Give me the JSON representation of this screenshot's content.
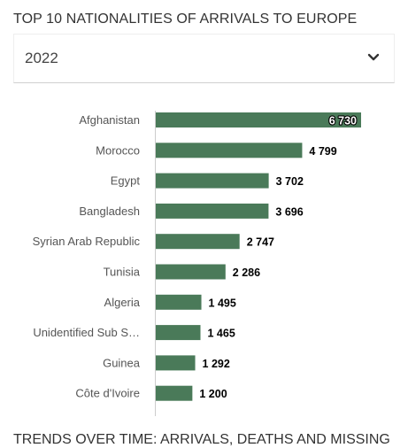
{
  "header": {
    "title": "TOP 10 NATIONALITIES OF ARRIVALS TO EUROPE",
    "year_selected": "2022",
    "chevron_icon": "chevron-down-icon"
  },
  "next_section_title": "TRENDS OVER TIME: ARRIVALS, DEATHS AND MISSING",
  "colors": {
    "bar": "#4a7a59",
    "axis": "#cccccc",
    "label": "#555555",
    "value": "#000000"
  },
  "chart_data": {
    "type": "bar",
    "orientation": "horizontal",
    "categories": [
      "Afghanistan",
      "Morocco",
      "Egypt",
      "Bangladesh",
      "Syrian Arab Republic",
      "Tunisia",
      "Algeria",
      "Unidentified Sub S…",
      "Guinea",
      "Côte d'Ivoire"
    ],
    "values": [
      6730,
      4799,
      3702,
      3696,
      2747,
      2286,
      1495,
      1465,
      1292,
      1200
    ],
    "value_labels": [
      "6 730",
      "4 799",
      "3 702",
      "3 696",
      "2 747",
      "2 286",
      "1 495",
      "1 465",
      "1 292",
      "1 200"
    ],
    "xlim": [
      0,
      6730
    ],
    "grid": false,
    "title": "",
    "xlabel": "",
    "ylabel": ""
  }
}
